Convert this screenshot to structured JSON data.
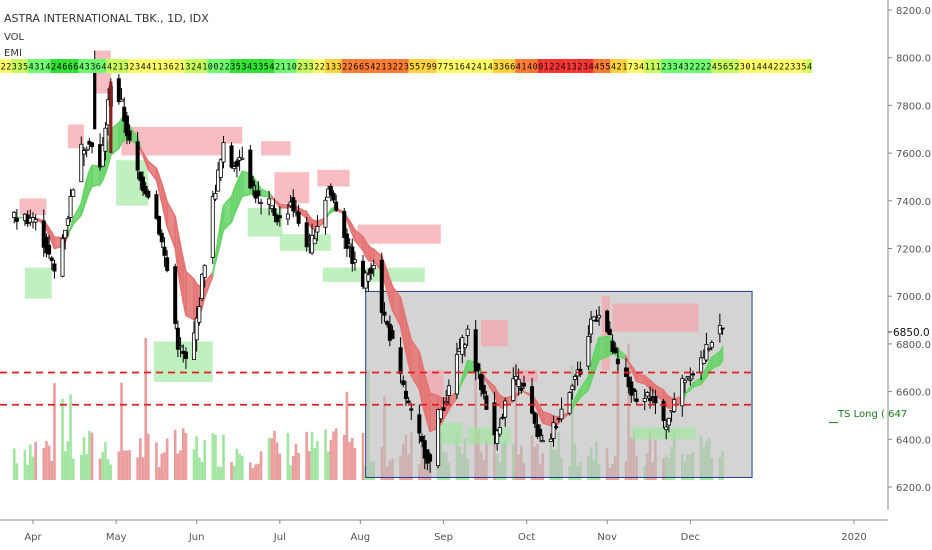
{
  "header": {
    "title": "ASTRA INTERNATIONAL TBK., 1D, IDX",
    "vol_label": "VOL",
    "ema_label": "EMI"
  },
  "annotation_label": "TS Long ( 647",
  "colors": {
    "up_fill": "#ffffff",
    "up_stroke": "#000000",
    "down_fill": "#000000",
    "supply_zone": "#f4a7ad",
    "demand_zone": "#9ee89e",
    "ema_bear": "#e57373",
    "ema_bull": "#66d466",
    "dashed_line": "#e02020",
    "range_box_fill": "#bdbdbd",
    "range_box_stroke": "#1f3c8c",
    "vol_up": "#8fe08f",
    "vol_down": "#e88b8b",
    "dark_bar": "#8b1f1f"
  },
  "chart_data": {
    "type": "candlestick",
    "title": "ASTRA INTERNATIONAL TBK., 1D, IDX",
    "ylim": [
      6100,
      8250
    ],
    "y_ticks": [
      "6200.0",
      "6400.0",
      "6600.0",
      "6800.0",
      "7000.0",
      "7200.0",
      "7400.0",
      "7600.0",
      "7800.0",
      "8000.0",
      "8200.0"
    ],
    "last_price": "6850.0",
    "x_ticks": [
      "Apr",
      "May",
      "Jun",
      "Jul",
      "Aug",
      "Sep",
      "Oct",
      "Nov",
      "Dec",
      "2020"
    ],
    "price_path": [
      [
        "Apr-01",
        7330
      ],
      [
        "Apr-05",
        7230
      ],
      [
        "Apr-09",
        7100
      ],
      [
        "Apr-14",
        7340
      ],
      [
        "Apr-18",
        7600
      ],
      [
        "Apr-22",
        7660
      ],
      [
        "Apr-26",
        7530
      ],
      [
        "Apr-30",
        7900
      ],
      [
        "May-03",
        7800
      ],
      [
        "May-07",
        7580
      ],
      [
        "May-10",
        7480
      ],
      [
        "May-14",
        7420
      ],
      [
        "May-17",
        7280
      ],
      [
        "May-21",
        7050
      ],
      [
        "May-24",
        6800
      ],
      [
        "May-28",
        6700
      ],
      [
        "May-31",
        6900
      ],
      [
        "Jun-04",
        7150
      ],
      [
        "Jun-07",
        7400
      ],
      [
        "Jun-11",
        7620
      ],
      [
        "Jun-14",
        7550
      ],
      [
        "Jun-18",
        7600
      ],
      [
        "Jun-21",
        7480
      ],
      [
        "Jun-25",
        7380
      ],
      [
        "Jun-28",
        7380
      ],
      [
        "Jul-02",
        7300
      ],
      [
        "Jul-05",
        7400
      ],
      [
        "Jul-09",
        7280
      ],
      [
        "Jul-12",
        7200
      ],
      [
        "Jul-16",
        7340
      ],
      [
        "Jul-19",
        7450
      ],
      [
        "Jul-23",
        7350
      ],
      [
        "Jul-26",
        7220
      ],
      [
        "Jul-30",
        7100
      ],
      [
        "Aug-02",
        7050
      ],
      [
        "Aug-06",
        7150
      ],
      [
        "Aug-09",
        6950
      ],
      [
        "Aug-13",
        6800
      ],
      [
        "Aug-16",
        6650
      ],
      [
        "Aug-20",
        6500
      ],
      [
        "Aug-23",
        6400
      ],
      [
        "Aug-27",
        6300
      ],
      [
        "Aug-30",
        6500
      ],
      [
        "Sep-03",
        6600
      ],
      [
        "Sep-06",
        6750
      ],
      [
        "Sep-10",
        6850
      ],
      [
        "Sep-13",
        6700
      ],
      [
        "Sep-17",
        6550
      ],
      [
        "Sep-20",
        6400
      ],
      [
        "Sep-24",
        6550
      ],
      [
        "Sep-27",
        6650
      ],
      [
        "Oct-01",
        6600
      ],
      [
        "Oct-04",
        6450
      ],
      [
        "Oct-08",
        6350
      ],
      [
        "Oct-11",
        6450
      ],
      [
        "Oct-15",
        6550
      ],
      [
        "Oct-18",
        6650
      ],
      [
        "Oct-22",
        6700
      ],
      [
        "Oct-25",
        6900
      ],
      [
        "Oct-29",
        6950
      ],
      [
        "Nov-01",
        6850
      ],
      [
        "Nov-05",
        6700
      ],
      [
        "Nov-08",
        6650
      ],
      [
        "Nov-12",
        6550
      ],
      [
        "Nov-15",
        6600
      ],
      [
        "Nov-19",
        6550
      ],
      [
        "Nov-22",
        6450
      ],
      [
        "Nov-26",
        6550
      ],
      [
        "Nov-29",
        6650
      ],
      [
        "Dec-03",
        6700
      ],
      [
        "Dec-06",
        6750
      ],
      [
        "Dec-10",
        6850
      ]
    ],
    "dashed_levels": [
      6680,
      6545
    ],
    "range_box": {
      "from": "Aug-03",
      "to": "Dec-24",
      "low": 6240,
      "high": 7020
    },
    "supply_zones": [
      {
        "from": "Mar-24",
        "to": "Apr-06",
        "low": 7340,
        "high": 7410
      },
      {
        "from": "Apr-14",
        "to": "Apr-20",
        "low": 7620,
        "high": 7720
      },
      {
        "from": "Apr-24",
        "to": "Apr-30",
        "low": 7850,
        "high": 8030
      },
      {
        "from": "May-03",
        "to": "Jun-11",
        "low": 7590,
        "high": 7710
      },
      {
        "from": "Jun-11",
        "to": "Jun-18",
        "low": 7640,
        "high": 7710
      },
      {
        "from": "Jun-25",
        "to": "Jul-05",
        "low": 7590,
        "high": 7650
      },
      {
        "from": "Jun-30",
        "to": "Jul-12",
        "low": 7390,
        "high": 7520
      },
      {
        "from": "Jul-15",
        "to": "Jul-27",
        "low": 7460,
        "high": 7530
      },
      {
        "from": "Jul-30",
        "to": "Aug-31",
        "low": 7220,
        "high": 7300
      },
      {
        "from": "Aug-26",
        "to": "Sep-01",
        "low": 6580,
        "high": 6690
      },
      {
        "from": "Sep-15",
        "to": "Sep-25",
        "low": 6790,
        "high": 6900
      },
      {
        "from": "Sep-29",
        "to": "Oct-05",
        "low": 6640,
        "high": 6690
      },
      {
        "from": "Oct-29",
        "to": "Nov-02",
        "low": 6690,
        "high": 7000
      },
      {
        "from": "Nov-03",
        "to": "Dec-04",
        "low": 6850,
        "high": 6970
      }
    ],
    "demand_zones": [
      {
        "from": "Mar-26",
        "to": "Apr-08",
        "low": 6990,
        "high": 7120
      },
      {
        "from": "May-01",
        "to": "May-13",
        "low": 7380,
        "high": 7570
      },
      {
        "from": "May-15",
        "to": "Jun-07",
        "low": 6640,
        "high": 6810
      },
      {
        "from": "Jun-20",
        "to": "Jul-02",
        "low": 7250,
        "high": 7370
      },
      {
        "from": "Jul-01",
        "to": "Jul-20",
        "low": 7190,
        "high": 7260
      },
      {
        "from": "Jul-17",
        "to": "Aug-25",
        "low": 7060,
        "high": 7120
      },
      {
        "from": "Aug-30",
        "to": "Sep-08",
        "low": 6380,
        "high": 6470
      },
      {
        "from": "Sep-10",
        "to": "Sep-26",
        "low": 6380,
        "high": 6450
      },
      {
        "from": "Nov-10",
        "to": "Dec-03",
        "low": 6400,
        "high": 6450
      }
    ]
  }
}
